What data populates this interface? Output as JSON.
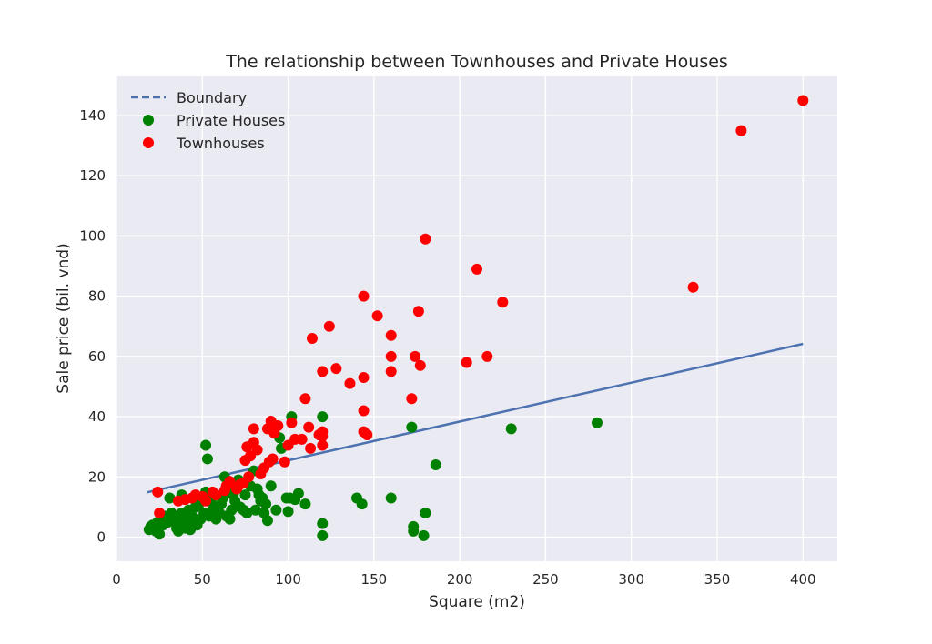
{
  "chart_data": {
    "type": "scatter",
    "title": "The relationship between Townhouses and Private Houses",
    "xlabel": "Square (m2)",
    "ylabel": "Sale price (bil. vnd)",
    "xlim": [
      0,
      420
    ],
    "ylim": [
      -8,
      153
    ],
    "x_ticks": [
      0,
      50,
      100,
      150,
      200,
      250,
      300,
      350,
      400
    ],
    "y_ticks": [
      0,
      20,
      40,
      60,
      80,
      100,
      120,
      140
    ],
    "grid": true,
    "legend_position": "top-left",
    "colors": {
      "background": "#eaeaf2",
      "grid": "#ffffff",
      "boundary": "#4c72b0",
      "private": "#008000",
      "townhouse": "#ff0000"
    },
    "boundary": {
      "name": "Boundary",
      "x": [
        18,
        400
      ],
      "y": [
        14.9,
        64.2
      ]
    },
    "series": [
      {
        "name": "Private Houses",
        "points": [
          [
            19,
            2.5
          ],
          [
            20,
            3.5
          ],
          [
            21,
            4
          ],
          [
            22,
            3
          ],
          [
            23,
            2
          ],
          [
            24,
            5
          ],
          [
            25,
            1
          ],
          [
            26,
            6
          ],
          [
            27,
            4
          ],
          [
            28,
            7
          ],
          [
            30,
            5
          ],
          [
            31,
            13
          ],
          [
            32,
            8
          ],
          [
            33,
            6
          ],
          [
            34,
            7
          ],
          [
            35,
            3
          ],
          [
            36,
            2
          ],
          [
            37,
            5
          ],
          [
            38,
            8
          ],
          [
            38,
            14
          ],
          [
            39,
            4
          ],
          [
            40,
            3
          ],
          [
            41,
            6
          ],
          [
            42,
            9
          ],
          [
            43,
            2.5
          ],
          [
            44,
            7
          ],
          [
            45,
            5
          ],
          [
            46,
            10
          ],
          [
            47,
            4
          ],
          [
            48,
            11
          ],
          [
            49,
            6
          ],
          [
            50,
            13
          ],
          [
            51,
            8
          ],
          [
            52,
            30.5
          ],
          [
            52,
            15
          ],
          [
            53,
            26
          ],
          [
            54,
            7
          ],
          [
            55,
            12
          ],
          [
            56,
            9
          ],
          [
            57,
            14
          ],
          [
            58,
            6
          ],
          [
            59,
            10
          ],
          [
            60,
            8
          ],
          [
            61,
            11
          ],
          [
            62,
            13
          ],
          [
            63,
            20
          ],
          [
            64,
            7
          ],
          [
            65,
            15
          ],
          [
            66,
            6
          ],
          [
            67,
            9
          ],
          [
            68,
            14
          ],
          [
            69,
            12
          ],
          [
            70,
            16
          ],
          [
            71,
            19
          ],
          [
            72,
            10
          ],
          [
            74,
            9
          ],
          [
            75,
            14
          ],
          [
            76,
            8
          ],
          [
            78,
            17
          ],
          [
            80,
            22
          ],
          [
            81,
            9
          ],
          [
            82,
            16
          ],
          [
            83,
            14
          ],
          [
            84,
            12
          ],
          [
            85,
            13
          ],
          [
            86,
            8
          ],
          [
            87,
            11
          ],
          [
            88,
            5.5
          ],
          [
            90,
            17
          ],
          [
            93,
            9
          ],
          [
            95,
            33
          ],
          [
            96,
            29.5
          ],
          [
            99,
            13
          ],
          [
            100,
            8.5
          ],
          [
            101,
            13
          ],
          [
            102,
            40
          ],
          [
            104,
            12.5
          ],
          [
            106,
            14.5
          ],
          [
            110,
            11
          ],
          [
            120,
            40
          ],
          [
            120,
            4.5
          ],
          [
            120,
            0.5
          ],
          [
            140,
            13
          ],
          [
            143,
            11
          ],
          [
            160,
            13
          ],
          [
            172,
            36.5
          ],
          [
            173,
            2
          ],
          [
            173,
            3.5
          ],
          [
            179,
            0.5
          ],
          [
            180,
            8
          ],
          [
            186,
            24
          ],
          [
            230,
            36
          ],
          [
            280,
            38
          ]
        ]
      },
      {
        "name": "Townhouses",
        "points": [
          [
            24,
            15
          ],
          [
            25,
            8
          ],
          [
            36,
            12
          ],
          [
            40,
            12.5
          ],
          [
            44,
            13
          ],
          [
            46,
            14
          ],
          [
            50,
            13.5
          ],
          [
            52,
            12
          ],
          [
            56,
            15
          ],
          [
            58,
            14
          ],
          [
            63,
            15.5
          ],
          [
            64,
            17
          ],
          [
            66,
            18.5
          ],
          [
            70,
            16
          ],
          [
            72,
            17.5
          ],
          [
            74,
            18
          ],
          [
            75,
            25.5
          ],
          [
            76,
            30
          ],
          [
            77,
            20
          ],
          [
            78,
            27
          ],
          [
            80,
            31.5
          ],
          [
            80,
            36
          ],
          [
            82,
            29
          ],
          [
            84,
            21
          ],
          [
            86,
            23
          ],
          [
            88,
            36
          ],
          [
            89,
            25
          ],
          [
            90,
            38.5
          ],
          [
            91,
            26
          ],
          [
            92,
            34.5
          ],
          [
            94,
            37
          ],
          [
            98,
            25
          ],
          [
            100,
            30.5
          ],
          [
            102,
            38
          ],
          [
            104,
            32.5
          ],
          [
            108,
            32.5
          ],
          [
            110,
            46
          ],
          [
            112,
            36.5
          ],
          [
            113,
            29.5
          ],
          [
            114,
            66
          ],
          [
            118,
            34
          ],
          [
            120,
            55
          ],
          [
            120,
            33.5
          ],
          [
            120,
            35
          ],
          [
            120,
            30.5
          ],
          [
            124,
            70
          ],
          [
            128,
            56
          ],
          [
            136,
            51
          ],
          [
            144,
            80
          ],
          [
            144,
            53
          ],
          [
            144,
            42
          ],
          [
            144,
            35
          ],
          [
            146,
            34
          ],
          [
            152,
            73.5
          ],
          [
            160,
            67
          ],
          [
            160,
            60
          ],
          [
            160,
            55
          ],
          [
            172,
            46
          ],
          [
            174,
            60
          ],
          [
            176,
            75
          ],
          [
            177,
            57
          ],
          [
            180,
            99
          ],
          [
            204,
            58
          ],
          [
            210,
            89
          ],
          [
            216,
            60
          ],
          [
            225,
            78
          ],
          [
            336,
            83
          ],
          [
            364,
            135
          ],
          [
            400,
            145
          ]
        ]
      }
    ]
  }
}
